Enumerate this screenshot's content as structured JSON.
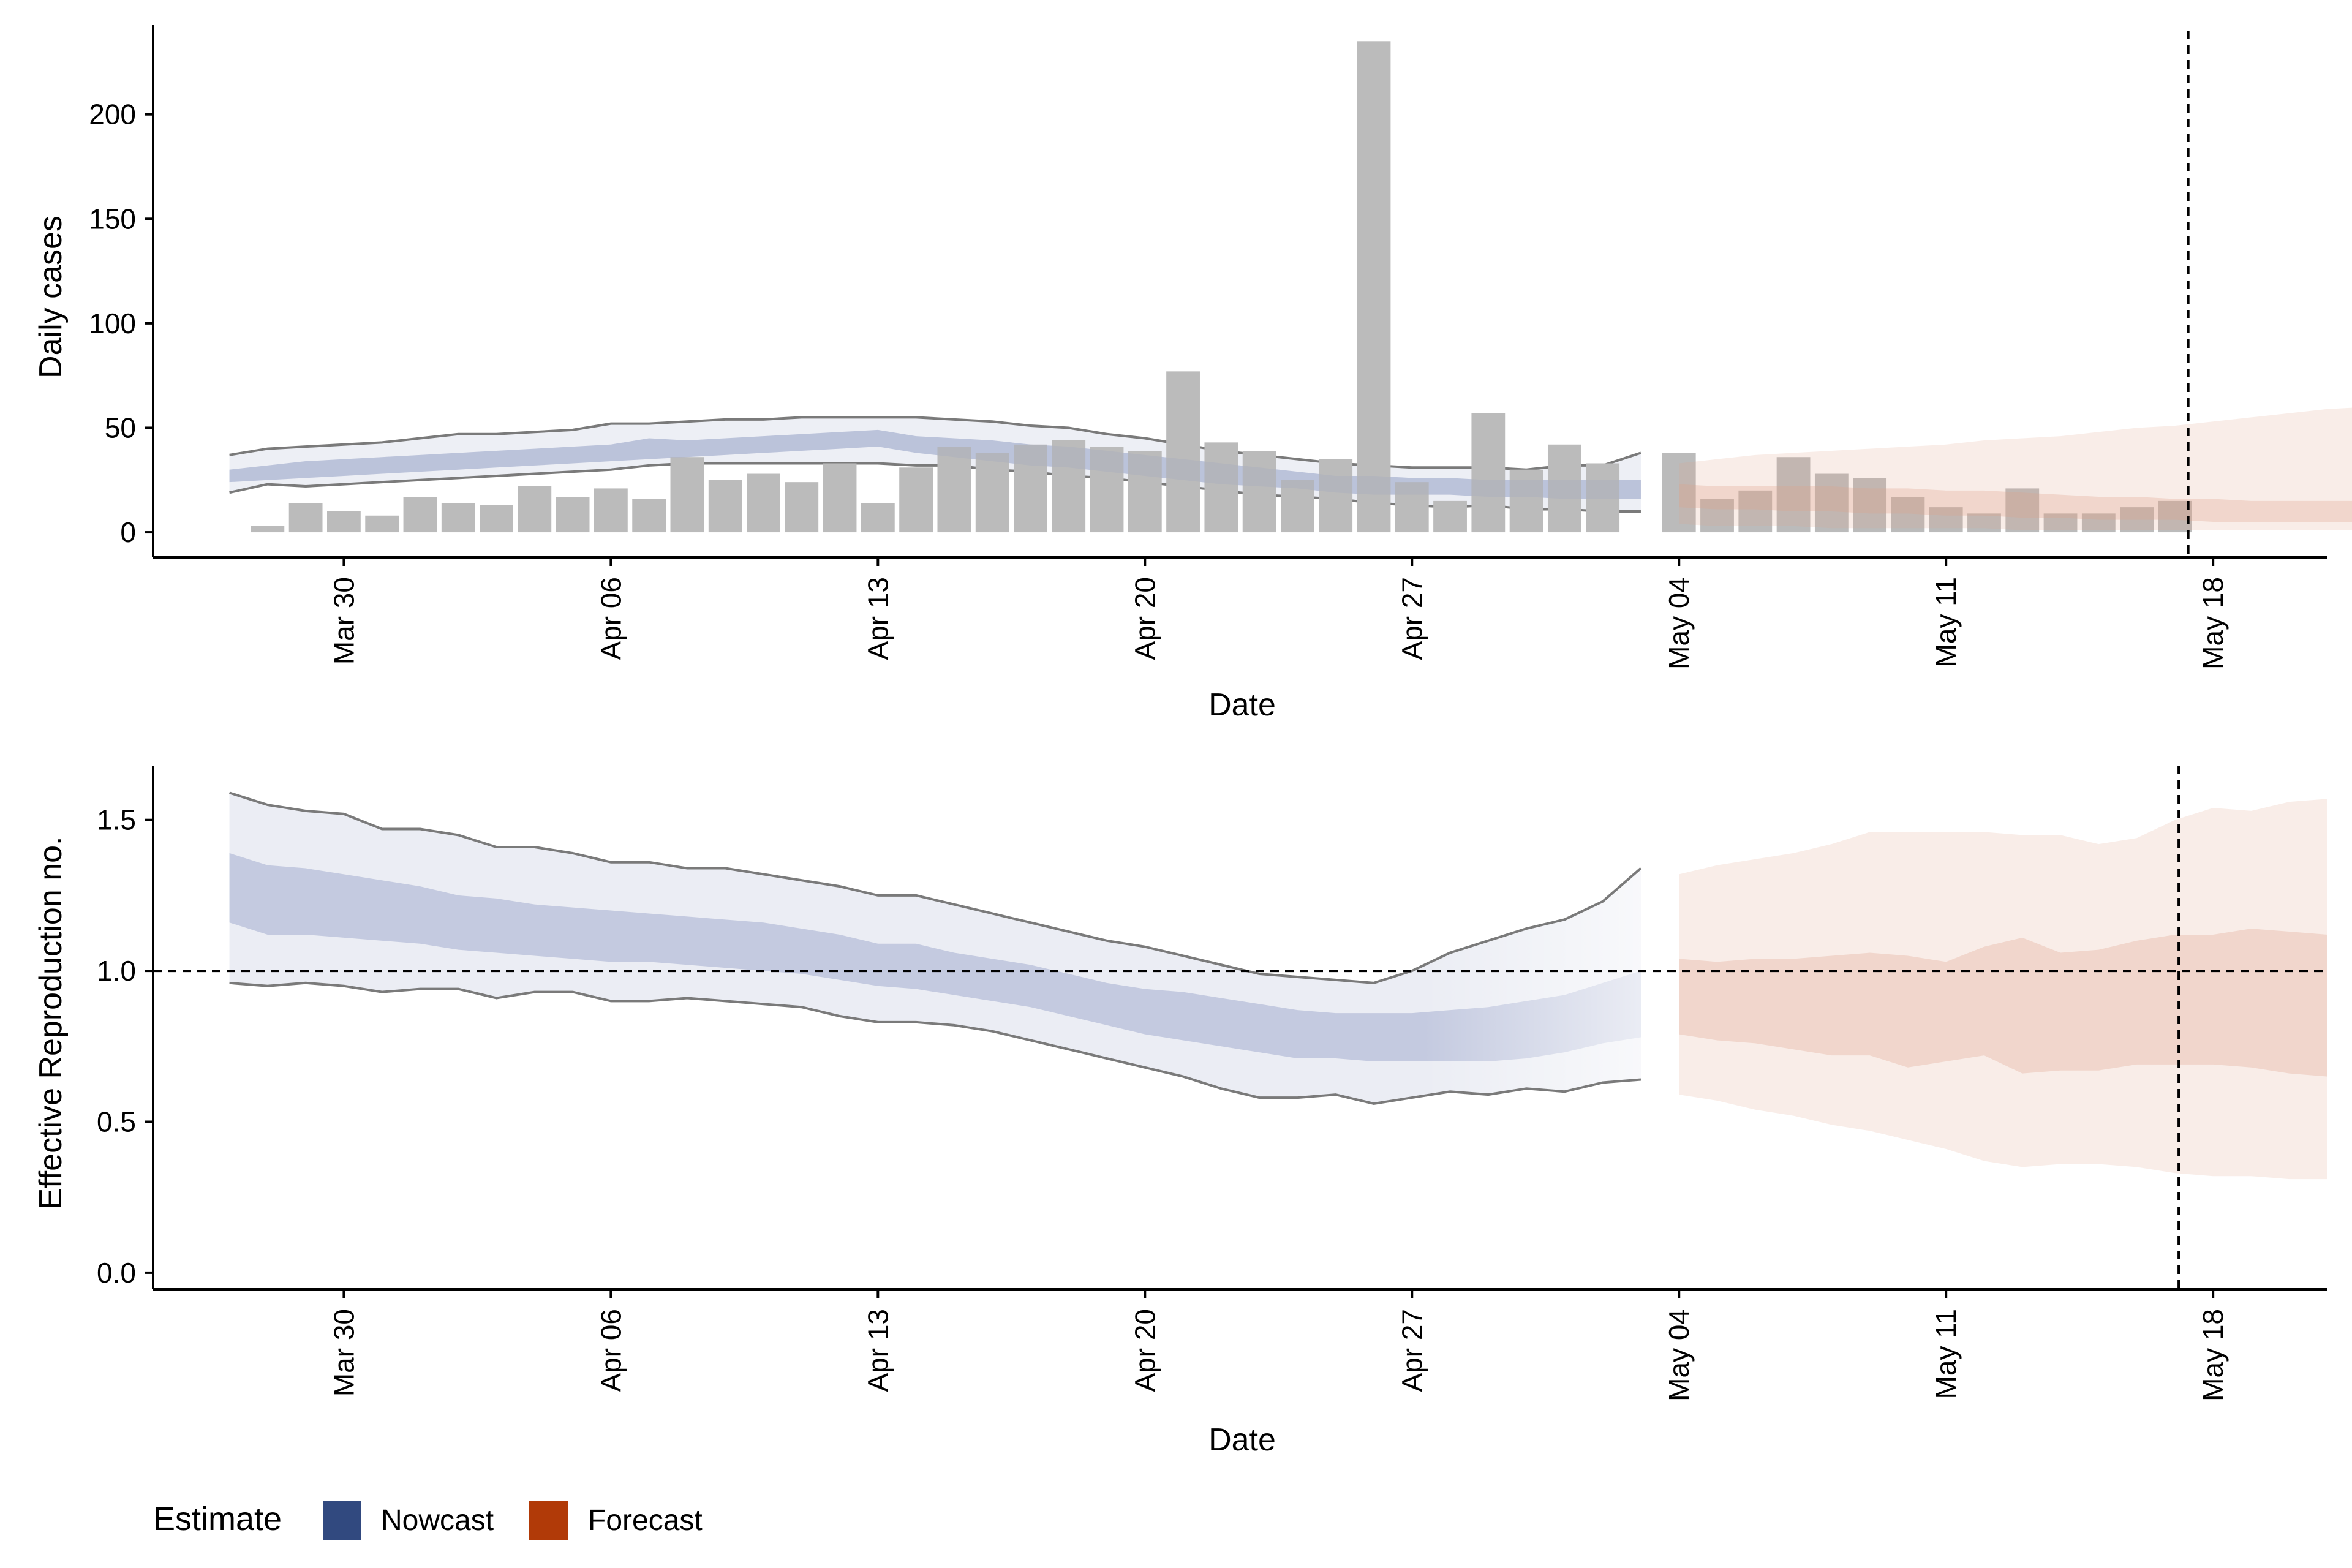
{
  "chart_data": [
    {
      "type": "bar",
      "panel": "cases",
      "xlabel": "Date",
      "ylabel": "Daily cases",
      "ylim": [
        -12,
        243
      ],
      "xlim": [
        "2020-03-25",
        "2020-05-21"
      ],
      "yticks": [
        0,
        50,
        100,
        150,
        200
      ],
      "xticks": [
        {
          "date": "2020-03-30",
          "label": "Mar 30"
        },
        {
          "date": "2020-04-06",
          "label": "Apr 06"
        },
        {
          "date": "2020-04-13",
          "label": "Apr 13"
        },
        {
          "date": "2020-04-20",
          "label": "Apr 20"
        },
        {
          "date": "2020-04-27",
          "label": "Apr 27"
        },
        {
          "date": "2020-05-04",
          "label": "May 04"
        },
        {
          "date": "2020-05-11",
          "label": "May 11"
        },
        {
          "date": "2020-05-18",
          "label": "May 18"
        }
      ],
      "reference_date": "2020-05-17",
      "bars": {
        "start_date": "2020-03-28",
        "values": [
          3,
          14,
          10,
          8,
          17,
          14,
          13,
          22,
          17,
          21,
          16,
          36,
          25,
          28,
          24,
          33,
          14,
          31,
          41,
          38,
          42,
          44,
          41,
          39,
          77,
          43,
          39,
          25,
          35,
          235,
          24,
          15,
          57,
          30,
          42,
          33,
          null,
          38,
          16,
          20,
          36,
          28,
          26,
          17,
          12,
          9,
          21,
          9,
          9,
          12,
          15
        ]
      },
      "series": [
        {
          "name": "Nowcast",
          "start_date": "2020-03-27",
          "outer_upper": [
            37,
            40,
            41,
            42,
            43,
            45,
            47,
            47,
            48,
            49,
            52,
            52,
            53,
            54,
            54,
            55,
            55,
            55,
            55,
            54,
            53,
            51,
            50,
            47,
            45,
            42,
            39,
            37,
            35,
            33,
            32,
            31,
            31,
            31,
            30,
            32,
            32,
            38
          ],
          "inner_upper": [
            30,
            32,
            34,
            35,
            36,
            37,
            38,
            39,
            40,
            41,
            42,
            45,
            44,
            45,
            46,
            47,
            48,
            49,
            46,
            45,
            44,
            42,
            41,
            39,
            37,
            35,
            33,
            31,
            29,
            27,
            27,
            26,
            26,
            25,
            25,
            25,
            25,
            25
          ],
          "inner_lower": [
            24,
            25,
            26,
            27,
            28,
            29,
            30,
            31,
            32,
            33,
            34,
            35,
            36,
            37,
            38,
            39,
            40,
            41,
            38,
            36,
            34,
            32,
            31,
            29,
            27,
            25,
            23,
            22,
            21,
            19,
            18,
            18,
            18,
            17,
            17,
            16,
            16,
            16
          ],
          "outer_lower": [
            19,
            23,
            22,
            23,
            24,
            25,
            26,
            27,
            28,
            29,
            30,
            32,
            33,
            33,
            33,
            33,
            33,
            33,
            32,
            32,
            30,
            29,
            27,
            26,
            24,
            22,
            20,
            18,
            17,
            16,
            14,
            13,
            12,
            13,
            11,
            11,
            10,
            10
          ]
        },
        {
          "name": "Forecast",
          "start_date": "2020-05-04",
          "outer_upper": [
            33,
            35,
            37,
            38,
            39,
            40,
            41,
            42,
            44,
            45,
            46,
            48,
            50,
            51,
            53,
            55,
            57,
            59,
            60,
            60
          ],
          "inner_upper": [
            23,
            22,
            22,
            22,
            22,
            21,
            21,
            20,
            20,
            19,
            18,
            17,
            17,
            16,
            16,
            15,
            15,
            15,
            15,
            14
          ],
          "inner_lower": [
            12,
            11,
            11,
            10,
            10,
            9,
            9,
            8,
            8,
            7,
            7,
            6,
            6,
            6,
            5,
            5,
            5,
            5,
            5,
            5
          ],
          "outer_lower": [
            4,
            3,
            3,
            3,
            2,
            2,
            2,
            2,
            2,
            1,
            1,
            1,
            1,
            1,
            1,
            1,
            1,
            1,
            1,
            1
          ]
        }
      ]
    },
    {
      "type": "area",
      "panel": "rt",
      "xlabel": "Date",
      "ylabel": "Effective Reproduction no.",
      "ylim": [
        -0.055,
        1.68
      ],
      "xlim": [
        "2020-03-25",
        "2020-05-21"
      ],
      "yticks": [
        {
          "value": 0,
          "label": "0.0"
        },
        {
          "value": 0.5,
          "label": "0.5"
        },
        {
          "value": 1,
          "label": "1.0"
        },
        {
          "value": 1.5,
          "label": "1.5"
        }
      ],
      "xticks": [
        {
          "date": "2020-03-30",
          "label": "Mar 30"
        },
        {
          "date": "2020-04-06",
          "label": "Apr 06"
        },
        {
          "date": "2020-04-13",
          "label": "Apr 13"
        },
        {
          "date": "2020-04-20",
          "label": "Apr 20"
        },
        {
          "date": "2020-04-27",
          "label": "Apr 27"
        },
        {
          "date": "2020-05-04",
          "label": "May 04"
        },
        {
          "date": "2020-05-11",
          "label": "May 11"
        },
        {
          "date": "2020-05-18",
          "label": "May 18"
        }
      ],
      "reference_date": "2020-05-17",
      "reference_value": 1.0,
      "series": [
        {
          "name": "Nowcast",
          "start_date": "2020-03-27",
          "outer_upper": [
            1.59,
            1.55,
            1.53,
            1.52,
            1.47,
            1.47,
            1.45,
            1.41,
            1.41,
            1.39,
            1.36,
            1.36,
            1.34,
            1.34,
            1.32,
            1.3,
            1.28,
            1.25,
            1.25,
            1.22,
            1.19,
            1.16,
            1.13,
            1.1,
            1.08,
            1.05,
            1.02,
            0.99,
            0.98,
            0.97,
            0.96,
            1.0,
            1.06,
            1.1,
            1.14,
            1.17,
            1.23,
            1.34
          ],
          "inner_upper": [
            1.39,
            1.35,
            1.34,
            1.32,
            1.3,
            1.28,
            1.25,
            1.24,
            1.22,
            1.21,
            1.2,
            1.19,
            1.18,
            1.17,
            1.16,
            1.14,
            1.12,
            1.09,
            1.09,
            1.06,
            1.04,
            1.02,
            0.99,
            0.96,
            0.94,
            0.93,
            0.91,
            0.89,
            0.87,
            0.86,
            0.86,
            0.86,
            0.87,
            0.88,
            0.9,
            0.92,
            0.96,
            1.0
          ],
          "inner_lower": [
            1.16,
            1.12,
            1.12,
            1.11,
            1.1,
            1.09,
            1.07,
            1.06,
            1.05,
            1.04,
            1.03,
            1.03,
            1.02,
            1.01,
            1.0,
            0.99,
            0.97,
            0.95,
            0.94,
            0.92,
            0.9,
            0.88,
            0.85,
            0.82,
            0.79,
            0.77,
            0.75,
            0.73,
            0.71,
            0.71,
            0.7,
            0.7,
            0.7,
            0.7,
            0.71,
            0.73,
            0.76,
            0.78
          ],
          "outer_lower": [
            0.96,
            0.95,
            0.96,
            0.95,
            0.93,
            0.94,
            0.94,
            0.91,
            0.93,
            0.93,
            0.9,
            0.9,
            0.91,
            0.9,
            0.89,
            0.88,
            0.85,
            0.83,
            0.83,
            0.82,
            0.8,
            0.77,
            0.74,
            0.71,
            0.68,
            0.65,
            0.61,
            0.58,
            0.58,
            0.59,
            0.56,
            0.58,
            0.6,
            0.59,
            0.61,
            0.6,
            0.63,
            0.64
          ]
        },
        {
          "name": "Forecast",
          "start_date": "2020-05-04",
          "outer_upper": [
            1.32,
            1.35,
            1.37,
            1.39,
            1.42,
            1.46,
            1.46,
            1.46,
            1.46,
            1.45,
            1.45,
            1.42,
            1.44,
            1.5,
            1.54,
            1.53,
            1.56,
            1.57
          ],
          "inner_upper": [
            1.04,
            1.03,
            1.04,
            1.04,
            1.05,
            1.06,
            1.05,
            1.03,
            1.08,
            1.11,
            1.06,
            1.07,
            1.1,
            1.12,
            1.12,
            1.14,
            1.13,
            1.12
          ],
          "inner_lower": [
            0.79,
            0.77,
            0.76,
            0.74,
            0.72,
            0.72,
            0.68,
            0.7,
            0.72,
            0.66,
            0.67,
            0.67,
            0.69,
            0.69,
            0.69,
            0.68,
            0.66,
            0.65
          ],
          "outer_lower": [
            0.59,
            0.57,
            0.54,
            0.52,
            0.49,
            0.47,
            0.44,
            0.41,
            0.37,
            0.35,
            0.36,
            0.36,
            0.35,
            0.33,
            0.32,
            0.32,
            0.31,
            0.31
          ]
        }
      ]
    }
  ],
  "legend": {
    "title": "Estimate",
    "items": [
      {
        "label": "Nowcast",
        "color": "#31497f"
      },
      {
        "label": "Forecast",
        "color": "#b13a08"
      }
    ]
  },
  "colors": {
    "nowcast": "#8e9ac3",
    "forecast": "#dfa38a",
    "bars": "#bbbbbb",
    "bound_line": "#7a7a7a",
    "axis": "#000000"
  }
}
